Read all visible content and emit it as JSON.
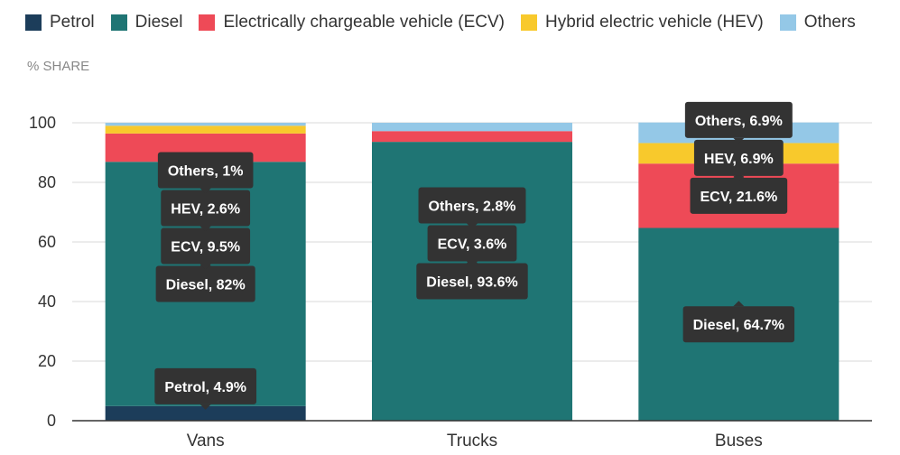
{
  "chart_data": {
    "type": "bar",
    "stacked": true,
    "ylabel": "% SHARE",
    "ylim": [
      0,
      100
    ],
    "yticks": [
      0,
      20,
      40,
      60,
      80,
      100
    ],
    "grid": true,
    "legend_position": "top-left",
    "categories": [
      "Vans",
      "Trucks",
      "Buses"
    ],
    "series": [
      {
        "name": "Petrol",
        "color": "#1c3d5a",
        "values": [
          4.9,
          0,
          0
        ]
      },
      {
        "name": "Diesel",
        "color": "#1f7574",
        "values": [
          82,
          93.6,
          64.7
        ]
      },
      {
        "name": "Electrically chargeable vehicle (ECV)",
        "color": "#ee4a57",
        "values": [
          9.5,
          3.6,
          21.6
        ]
      },
      {
        "name": "Hybrid electric vehicle (HEV)",
        "color": "#f8c92c",
        "values": [
          2.6,
          0,
          6.9
        ]
      },
      {
        "name": "Others",
        "color": "#94c8e7",
        "values": [
          1,
          2.8,
          6.9
        ]
      }
    ],
    "annotations": [
      {
        "category": "Vans",
        "series": "Petrol",
        "text": "Petrol, 4.9%"
      },
      {
        "category": "Vans",
        "series": "Diesel",
        "text": "Diesel, 82%"
      },
      {
        "category": "Vans",
        "series": "Electrically chargeable vehicle (ECV)",
        "text": "ECV, 9.5%"
      },
      {
        "category": "Vans",
        "series": "Hybrid electric vehicle (HEV)",
        "text": "HEV, 2.6%"
      },
      {
        "category": "Vans",
        "series": "Others",
        "text": "Others, 1%"
      },
      {
        "category": "Trucks",
        "series": "Diesel",
        "text": "Diesel, 93.6%"
      },
      {
        "category": "Trucks",
        "series": "Electrically chargeable vehicle (ECV)",
        "text": "ECV, 3.6%"
      },
      {
        "category": "Trucks",
        "series": "Others",
        "text": "Others, 2.8%"
      },
      {
        "category": "Buses",
        "series": "Diesel",
        "text": "Diesel, 64.7%"
      },
      {
        "category": "Buses",
        "series": "Electrically chargeable vehicle (ECV)",
        "text": "ECV, 21.6%"
      },
      {
        "category": "Buses",
        "series": "Hybrid electric vehicle (HEV)",
        "text": "HEV, 6.9%"
      },
      {
        "category": "Buses",
        "series": "Others",
        "text": "Others, 6.9%"
      }
    ]
  }
}
